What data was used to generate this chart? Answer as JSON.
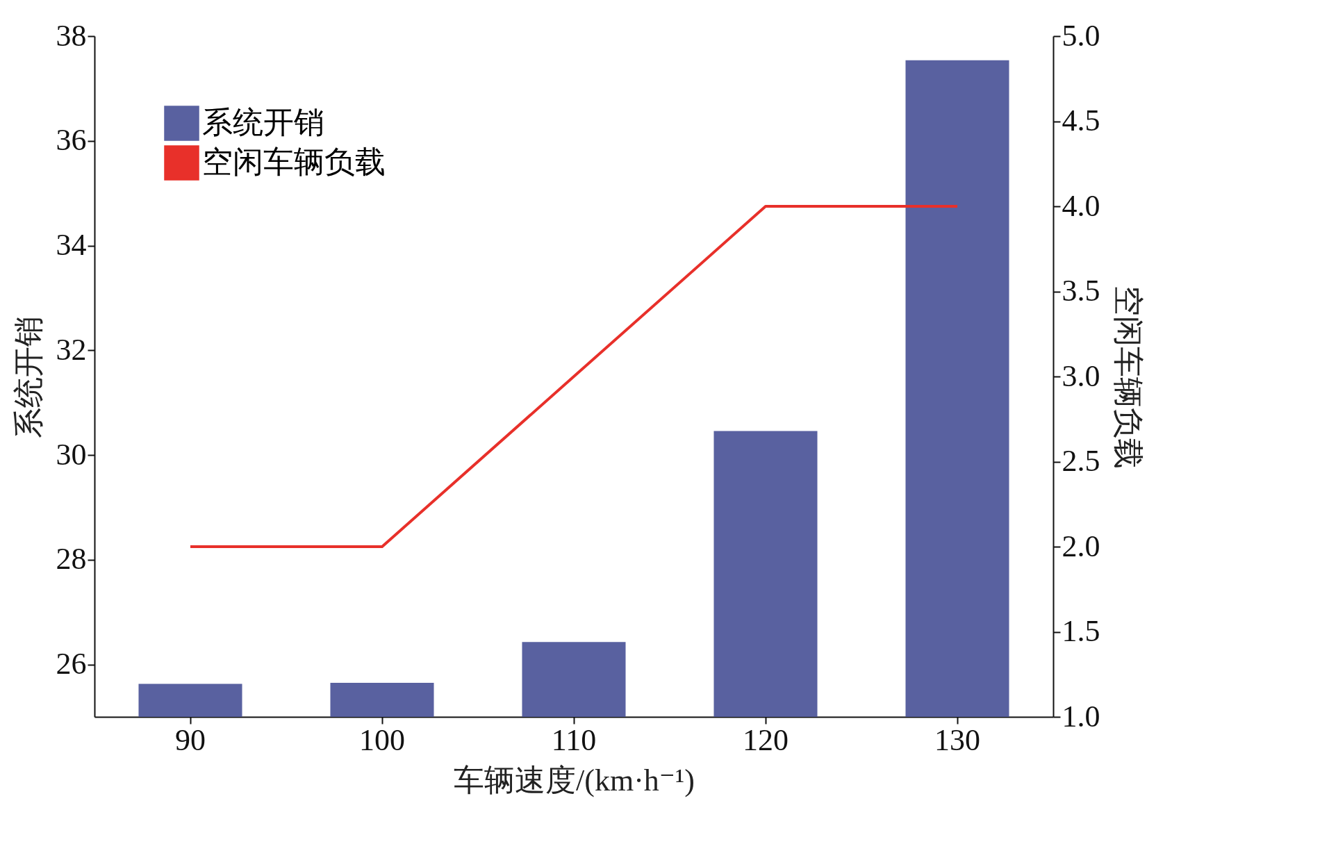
{
  "chart_data": {
    "type": "bar",
    "xlabel": "车辆速度/(km·h⁻¹)",
    "ylabel": "系统开销",
    "y2label": "空闲车辆负载",
    "categories": [
      "90",
      "100",
      "110",
      "120",
      "130"
    ],
    "series": [
      {
        "name": "系统开销",
        "color": "#5961a0",
        "values": [
          25.63,
          25.65,
          26.43,
          30.46,
          37.54
        ]
      },
      {
        "name": "空闲车辆负载",
        "type": "line",
        "axis": "y2",
        "color": "#e8302a",
        "values": [
          2,
          2,
          3,
          4,
          4
        ]
      }
    ],
    "ylim": [
      25,
      38
    ],
    "yticks": [
      26,
      28,
      30,
      32,
      34,
      36,
      38
    ],
    "y2lim": [
      1,
      5
    ],
    "y2ticks": [
      {
        "value": 1,
        "label": "1.0"
      },
      {
        "value": 1.5,
        "label": "1.5"
      },
      {
        "value": 2,
        "label": "2.0"
      },
      {
        "value": 2.5,
        "label": "2.5"
      },
      {
        "value": 3,
        "label": "3.0"
      },
      {
        "value": 3.5,
        "label": "3.5"
      },
      {
        "value": 4,
        "label": "4.0"
      },
      {
        "value": 4.5,
        "label": "4.5"
      },
      {
        "value": 5,
        "label": "5.0"
      }
    ],
    "legend": "top left",
    "grid": false,
    "marker": "none",
    "line_style": "solid"
  }
}
